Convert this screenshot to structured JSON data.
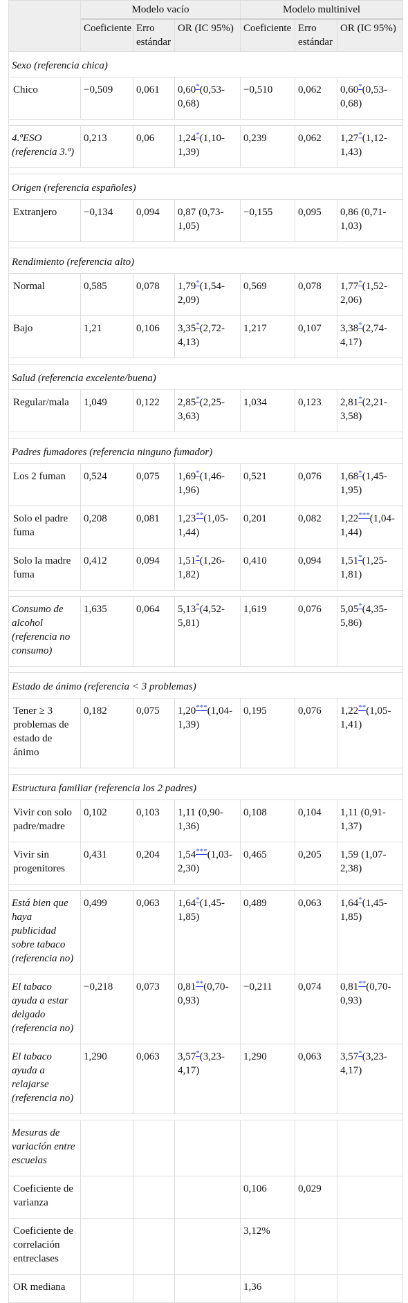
{
  "table": {
    "groups": [
      "Modelo vacío",
      "Modelo multinivel"
    ],
    "columns": [
      "Coeficiente",
      "Erro estándar",
      "OR (IC 95%)",
      "Coeficiente",
      "Erro estándar",
      "OR (IC 95%)"
    ],
    "rows": [
      {
        "section": "Sexo (referencia chica)"
      },
      {
        "label": "Chico",
        "cells": [
          "−0,509",
          "0,061",
          {
            "value": "0,60",
            "sig": "*",
            "ci": "(0,53-0,68)"
          },
          "−0,510",
          "0,062",
          {
            "value": "0,60",
            "sig": "*",
            "ci": "(0,53-0,68)"
          }
        ]
      },
      {
        "label": "4.ºESO (referencia 3.º)",
        "italic": true,
        "gap": true,
        "cells": [
          "0,213",
          "0,06",
          {
            "value": "1,24",
            "sig": "*",
            "ci": "(1,10-1,39)"
          },
          "0,239",
          "0,062",
          {
            "value": "1,27",
            "sig": "*",
            "ci": "(1,12-1,43)"
          }
        ]
      },
      {
        "section": "Origen (referencia españoles)",
        "gap": true
      },
      {
        "label": "Extranjero",
        "cells": [
          "−0,134",
          "0,094",
          {
            "value": "0,87",
            "ci": "(0,73-1,05)"
          },
          "−0,155",
          "0,095",
          {
            "value": "0,86",
            "ci": "(0,71-1,03)"
          }
        ]
      },
      {
        "section": "Rendimiento (referencia alto)",
        "gap": true
      },
      {
        "label": "Normal",
        "cells": [
          "0,585",
          "0,078",
          {
            "value": "1,79",
            "sig": "*",
            "ci": "(1,54-2,09)"
          },
          "0,569",
          "0,078",
          {
            "value": "1,77",
            "sig": "*",
            "ci": "(1,52-2,06)"
          }
        ]
      },
      {
        "label": "Bajo",
        "cells": [
          "1,21",
          "0,106",
          {
            "value": "3,35",
            "sig": "*",
            "ci": "(2,72-4,13)"
          },
          "1,217",
          "0,107",
          {
            "value": "3,38",
            "sig": "*",
            "ci": "(2,74-4,17)"
          }
        ]
      },
      {
        "section": "Salud (referencia excelente/buena)",
        "gap": true
      },
      {
        "label": "Regular/mala",
        "cells": [
          "1,049",
          "0,122",
          {
            "value": "2,85",
            "sig": "*",
            "ci": "(2,25-3,63)"
          },
          "1,034",
          "0,123",
          {
            "value": "2,81",
            "sig": "*",
            "ci": "(2,21-3,58)"
          }
        ]
      },
      {
        "section": "Padres fumadores (referencia ninguno fumador)",
        "gap": true
      },
      {
        "label": "Los 2 fuman",
        "cells": [
          "0,524",
          "0,075",
          {
            "value": "1,69",
            "sig": "*",
            "ci": "(1,46-1,96)"
          },
          "0,521",
          "0,076",
          {
            "value": "1,68",
            "sig": "*",
            "ci": "(1,45-1,95)"
          }
        ]
      },
      {
        "label": "Solo el padre fuma",
        "cells": [
          "0,208",
          "0,081",
          {
            "value": "1,23",
            "sig": "**",
            "ci": "(1,05-1,44)"
          },
          "0,201",
          "0,082",
          {
            "value": "1,22",
            "sig": "***",
            "ci": "(1,04-1,44)"
          }
        ]
      },
      {
        "label": "Solo la madre fuma",
        "cells": [
          "0,412",
          "0,094",
          {
            "value": "1,51",
            "sig": "*",
            "ci": "(1,26-1,82)"
          },
          "0,410",
          "0,094",
          {
            "value": "1,51",
            "sig": "*",
            "ci": "(1,25-1,81)"
          }
        ]
      },
      {
        "label": "Consumo de alcohol (referencia no consumo)",
        "italic": true,
        "gap": true,
        "cells": [
          "1,635",
          "0,064",
          {
            "value": "5,13",
            "sig": "*",
            "ci": "(4,52-5,81)"
          },
          "1,619",
          "0,076",
          {
            "value": "5,05",
            "sig": "*",
            "ci": "(4,35-5,86)"
          }
        ]
      },
      {
        "section": "Estado de ánimo (referencia < 3 problemas)",
        "gap": true
      },
      {
        "label": "Tener ≥ 3 problemas de estado de ánimo",
        "cells": [
          "0,182",
          "0,075",
          {
            "value": "1,20",
            "sig": "***",
            "ci": "(1,04-1,39)"
          },
          "0,195",
          "0,076",
          {
            "value": "1,22",
            "sig": "**",
            "ci": "(1,05-1,41)"
          }
        ]
      },
      {
        "section": "Estructura familiar (referencia los 2 padres)",
        "gap": true
      },
      {
        "label": "Vivir con solo padre/madre",
        "cells": [
          "0,102",
          "0,103",
          {
            "value": "1,11",
            "ci": "(0,90-1,36)"
          },
          "0,108",
          "0,104",
          {
            "value": "1,11",
            "ci": "(0,91-1,37)"
          }
        ]
      },
      {
        "label": "Vivir sin progenitores",
        "cells": [
          "0,431",
          "0,204",
          {
            "value": "1,54",
            "sig": "***",
            "ci": "(1,03-2,30)"
          },
          "0,465",
          "0,205",
          {
            "value": "1,59",
            "ci": "(1,07-2,38)"
          }
        ]
      },
      {
        "label": "Está bien que haya publicidad sobre tabaco (referencia no)",
        "italic": true,
        "gap": true,
        "cells": [
          "0,499",
          "0,063",
          {
            "value": "1,64",
            "sig": "*",
            "ci": "(1,45-1,85)"
          },
          "0,489",
          "0,063",
          {
            "value": "1,64",
            "sig": "*",
            "ci": "(1,45-1,85)"
          }
        ]
      },
      {
        "label": "El tabaco ayuda a estar delgado (referencia no)",
        "italic": true,
        "cells": [
          "−0,218",
          "0,073",
          {
            "value": "0,81",
            "sig": "**",
            "ci": "(0,70-0,93)"
          },
          "−0,211",
          "0,074",
          {
            "value": "0,81",
            "sig": "**",
            "ci": "(0,70-0,93)"
          }
        ]
      },
      {
        "label": "El tabaco ayuda a relajarse (referencia no)",
        "italic": true,
        "cells": [
          "1,290",
          "0,063",
          {
            "value": "3,57",
            "sig": "*",
            "ci": "(3,23-4,17)"
          },
          "1,290",
          "0,063",
          {
            "value": "3,57",
            "sig": "*",
            "ci": "(3,23-4,17)"
          }
        ]
      },
      {
        "label": "Mesuras de variación entre escuelas",
        "italic": true,
        "gap": true,
        "cells": [
          null,
          null,
          null,
          null,
          null,
          null
        ]
      },
      {
        "label": "Coeficiente de varianza",
        "cells": [
          null,
          null,
          null,
          "0,106",
          "0,029",
          null
        ]
      },
      {
        "label": "Coeficiente de correlación entreclases",
        "cells": [
          null,
          null,
          null,
          "3,12%",
          null,
          null
        ]
      },
      {
        "label": "OR mediana",
        "cells": [
          null,
          null,
          null,
          "1,36",
          null,
          null
        ]
      }
    ]
  }
}
